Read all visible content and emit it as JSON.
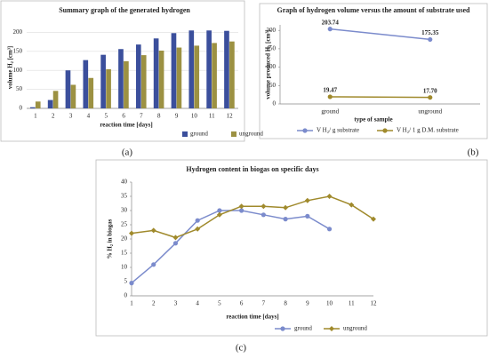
{
  "chart_data": [
    {
      "type": "bar",
      "panel": "(a)",
      "title": "Summary graph of the generated hydrogen",
      "x_label": "reaction time [days]",
      "y_label": "volume H₂ [cm³]",
      "categories": [
        "1",
        "2",
        "3",
        "4",
        "5",
        "6",
        "7",
        "8",
        "9",
        "10",
        "11",
        "12"
      ],
      "series": [
        {
          "name": "ground",
          "color": "#3b4f9c",
          "values": [
            3,
            22,
            100,
            127,
            141,
            156,
            168,
            184,
            198,
            205,
            205,
            204
          ]
        },
        {
          "name": "unground",
          "color": "#9c9142",
          "values": [
            18,
            46,
            62,
            80,
            103,
            124,
            140,
            152,
            160,
            165,
            172,
            176
          ]
        }
      ],
      "ylim": [
        0,
        215
      ],
      "yticks": [
        0,
        50,
        100,
        150,
        200
      ],
      "grid": true,
      "legend": "bottom right"
    },
    {
      "type": "line",
      "panel": "(b)",
      "title": "Graph of hydrogen volume versus the amount of substrate used",
      "x_label": "type of sample",
      "y_label": "volume produced H₂ [cm³]",
      "categories": [
        "ground",
        "unground"
      ],
      "series": [
        {
          "name": "V H₂/ g substrate",
          "color": "#7b8bcc",
          "values": [
            203.74,
            175.35
          ],
          "value_labels": [
            "203.74",
            "175.35"
          ]
        },
        {
          "name": "V H₂/ 1 g D.M. substrate",
          "color": "#a08a2c",
          "values": [
            19.47,
            17.7
          ],
          "value_labels": [
            "19.47",
            "17.70"
          ]
        }
      ],
      "ylim": [
        0,
        215
      ],
      "yticks": [
        0,
        50,
        100,
        150,
        200
      ],
      "grid": false,
      "legend": "bottom"
    },
    {
      "type": "line",
      "panel": "(c)",
      "title": "Hydrogen content in biogas on specific days",
      "x_label": "reaction time [days]",
      "y_label": "% H₂ in biogas",
      "categories": [
        "1",
        "2",
        "3",
        "4",
        "5",
        "6",
        "7",
        "8",
        "9",
        "10",
        "11",
        "12"
      ],
      "series": [
        {
          "name": "ground",
          "color": "#7b8bcc",
          "values": [
            4.5,
            11,
            18.5,
            26.5,
            30,
            30,
            28.5,
            27,
            28,
            23.5,
            null,
            null
          ]
        },
        {
          "name": "unground",
          "color": "#a08a2c",
          "values": [
            22,
            23,
            20.5,
            23.5,
            28.5,
            31.5,
            31.5,
            31,
            33.5,
            35,
            32,
            27
          ]
        }
      ],
      "ylim": [
        0,
        40
      ],
      "yticks": [
        0,
        5,
        10,
        15,
        20,
        25,
        30,
        35,
        40
      ],
      "grid": false,
      "legend": "bottom"
    }
  ]
}
